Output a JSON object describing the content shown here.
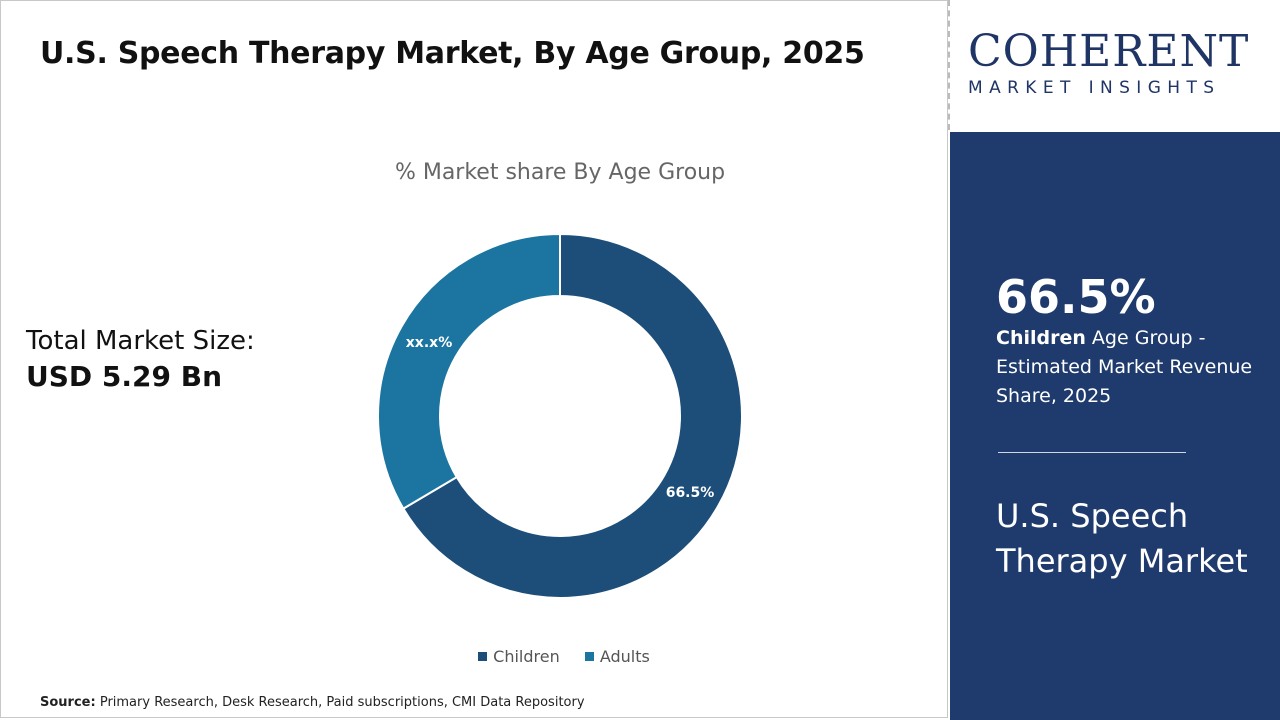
{
  "title": "U.S. Speech Therapy Market, By Age Group, 2025",
  "total_market": {
    "label": "Total Market Size:",
    "value": "USD 5.29 Bn"
  },
  "source": {
    "label": "Source:",
    "text": "Primary Research, Desk Research, Paid subscriptions, CMI Data Repository"
  },
  "logo": {
    "name": "COHERENT",
    "tagline": "MARKET INSIGHTS"
  },
  "panel": {
    "stat": "66.5%",
    "desc_bold": "Children",
    "desc_rest": " Age Group - Estimated Market Revenue Share, 2025",
    "market_name": "U.S. Speech Therapy Market",
    "background": "#1f3a6c"
  },
  "chart_data": {
    "type": "pie",
    "donut": true,
    "title": "% Market share By Age Group",
    "categories": [
      "Children",
      "Adults"
    ],
    "values": [
      66.5,
      33.5
    ],
    "data_labels": [
      "66.5%",
      "xx.x%"
    ],
    "colors": [
      "#1c4e79",
      "#1b75a0"
    ],
    "legend": "bottom"
  }
}
